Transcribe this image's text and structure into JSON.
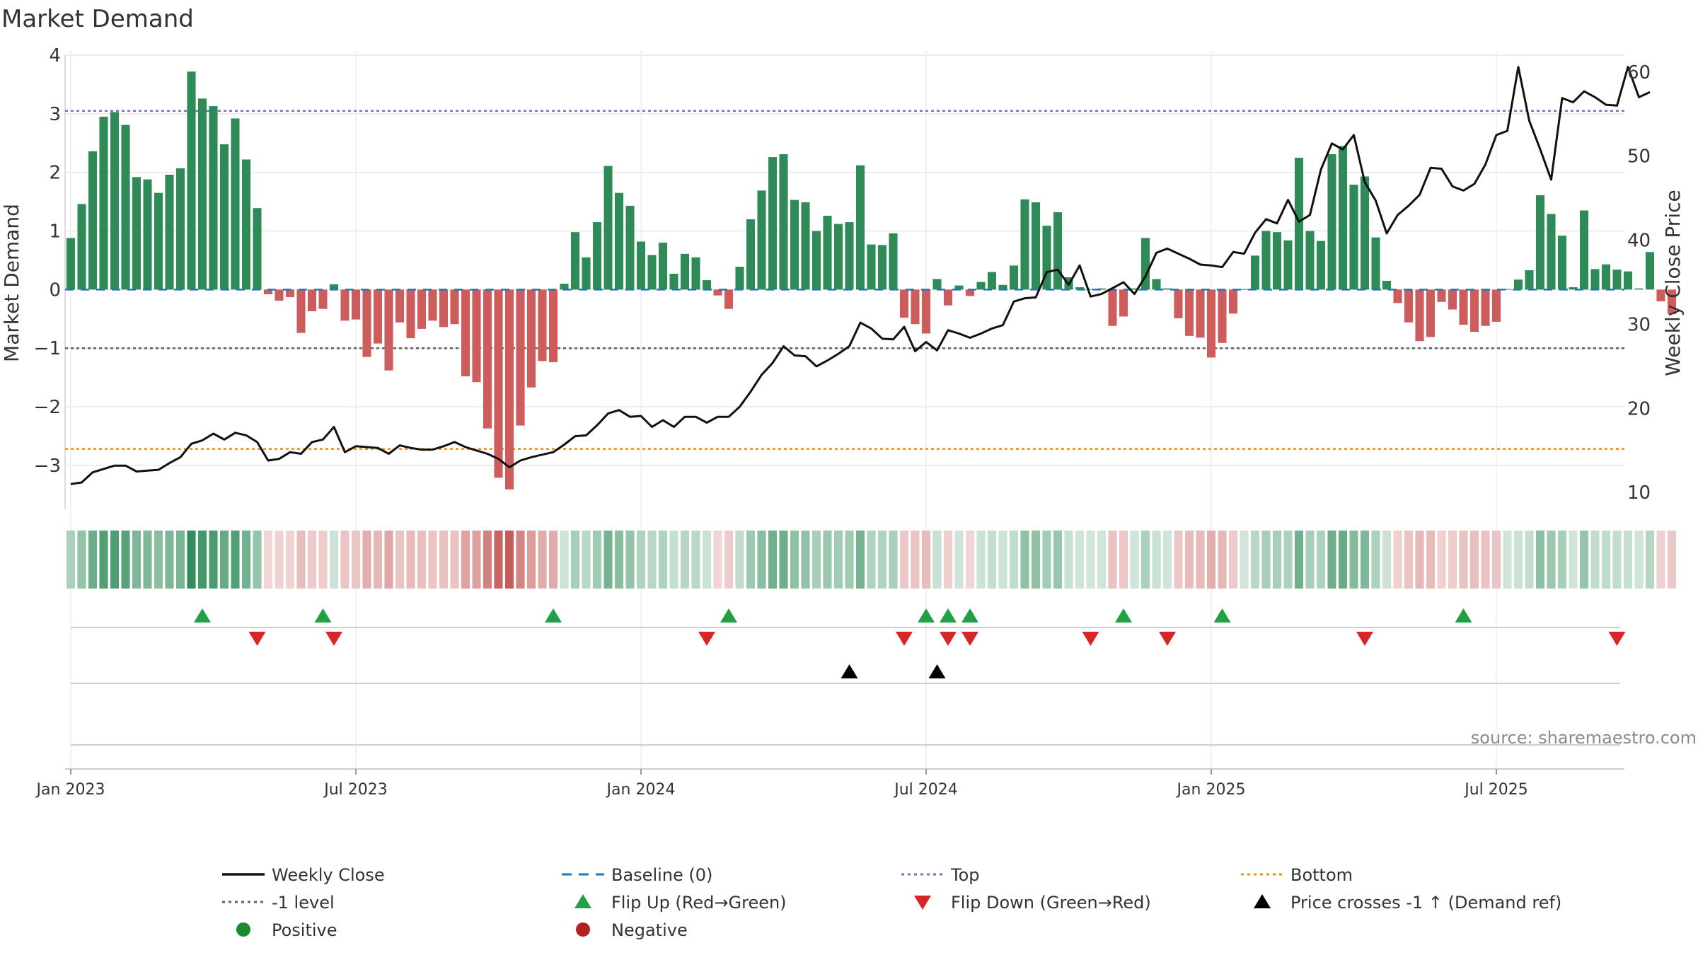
{
  "title": "Market Demand",
  "source": "source: sharemaestro.com",
  "chart_data": {
    "type": "bar",
    "x_tick_labels": [
      "Jan 2023",
      "Jul 2023",
      "Jan 2024",
      "Jul 2024",
      "Jan 2025",
      "Jul 2025"
    ],
    "x_tick_weeks": [
      0,
      26,
      52,
      78,
      104,
      130
    ],
    "left_axis": {
      "label": "Market Demand",
      "range": [
        -3.75,
        4.0
      ],
      "ticks": [
        4,
        3,
        2,
        1,
        0,
        -1,
        -2,
        -3
      ],
      "tick_labels": [
        "4",
        "3",
        "2",
        "1",
        "0",
        "−1",
        "−2",
        "−3"
      ]
    },
    "right_axis": {
      "label": "Weekly Close Price",
      "range": [
        8,
        62
      ],
      "ticks": [
        60,
        50,
        40,
        30,
        20,
        10
      ],
      "tick_labels": [
        "60",
        "50",
        "40",
        "30",
        "20",
        "10"
      ]
    },
    "reference_lines": {
      "top": 3.05,
      "minus_one": -1.0,
      "bottom": -2.72,
      "baseline": 0
    },
    "week_start": "2023-01-01",
    "week_step_days": 7,
    "demand": [
      0.88,
      1.46,
      2.36,
      2.95,
      3.03,
      2.81,
      1.92,
      1.88,
      1.65,
      1.96,
      2.07,
      3.72,
      3.26,
      3.13,
      2.48,
      2.92,
      2.22,
      1.39,
      -0.08,
      -0.19,
      -0.13,
      -0.74,
      -0.37,
      -0.33,
      0.09,
      -0.53,
      -0.51,
      -1.15,
      -0.92,
      -1.38,
      -0.56,
      -0.83,
      -0.67,
      -0.53,
      -0.64,
      -0.59,
      -1.48,
      -1.58,
      -2.37,
      -3.21,
      -3.41,
      -2.32,
      -1.67,
      -1.22,
      -1.24,
      0.1,
      0.98,
      0.55,
      1.15,
      2.11,
      1.65,
      1.43,
      0.82,
      0.59,
      0.8,
      0.27,
      0.61,
      0.55,
      0.16,
      -0.1,
      -0.33,
      0.39,
      1.2,
      1.69,
      2.26,
      2.31,
      1.53,
      1.49,
      1.0,
      1.26,
      1.12,
      1.15,
      2.12,
      0.77,
      0.76,
      0.96,
      -0.48,
      -0.59,
      -0.75,
      0.18,
      -0.27,
      0.07,
      -0.11,
      0.13,
      0.3,
      0.08,
      0.41,
      1.54,
      1.49,
      1.09,
      1.32,
      0.21,
      0.04,
      0.01,
      0.02,
      -0.62,
      -0.46,
      0.02,
      0.88,
      0.18,
      0.02,
      -0.49,
      -0.79,
      -0.82,
      -1.16,
      -0.91,
      -0.41,
      0.01,
      0.58,
      1.0,
      0.98,
      0.84,
      2.25,
      1.0,
      0.83,
      2.31,
      2.45,
      1.79,
      1.93,
      0.89,
      0.15,
      -0.23,
      -0.56,
      -0.88,
      -0.81,
      -0.21,
      -0.34,
      -0.6,
      -0.72,
      -0.62,
      -0.55,
      0.01,
      0.17,
      0.33,
      1.61,
      1.29,
      0.92,
      0.04,
      1.35,
      0.35,
      0.43,
      0.34,
      0.31,
      0.02,
      0.64,
      -0.2,
      -0.42
    ],
    "close": [
      11.0,
      11.2,
      12.4,
      12.8,
      13.2,
      13.2,
      12.5,
      12.6,
      12.7,
      13.5,
      14.2,
      15.8,
      16.2,
      17.0,
      16.3,
      17.1,
      16.8,
      16.0,
      13.8,
      14.0,
      14.8,
      14.6,
      16.0,
      16.3,
      17.8,
      14.8,
      15.5,
      15.4,
      15.3,
      14.6,
      15.6,
      15.3,
      15.1,
      15.1,
      15.5,
      16.0,
      15.4,
      15.0,
      14.6,
      14.0,
      13.0,
      13.8,
      14.2,
      14.5,
      14.8,
      15.7,
      16.7,
      16.8,
      18.0,
      19.4,
      19.8,
      19.0,
      19.1,
      17.8,
      18.6,
      17.8,
      19.0,
      19.0,
      18.3,
      19.0,
      19.0,
      20.2,
      22.0,
      24.0,
      25.4,
      27.4,
      26.3,
      26.2,
      25.0,
      25.7,
      26.5,
      27.4,
      30.2,
      29.5,
      28.3,
      28.2,
      29.7,
      26.8,
      27.9,
      26.9,
      29.3,
      28.9,
      28.4,
      28.9,
      29.5,
      29.9,
      32.7,
      33.1,
      33.2,
      36.2,
      36.5,
      34.7,
      37.0,
      33.3,
      33.6,
      34.3,
      35.0,
      33.6,
      35.7,
      38.5,
      39.0,
      38.4,
      37.8,
      37.1,
      37.0,
      36.8,
      38.6,
      38.4,
      40.9,
      42.5,
      42.0,
      44.8,
      42.2,
      43.0,
      48.4,
      51.5,
      50.8,
      52.5,
      46.9,
      44.7,
      40.8,
      43.0,
      44.1,
      45.4,
      48.6,
      48.5,
      46.4,
      45.9,
      46.7,
      49.0,
      52.5,
      53.0,
      60.6,
      54.2,
      50.8,
      47.2,
      56.9,
      56.4,
      57.7,
      57.0,
      56.1,
      56.0,
      60.6,
      57.0,
      57.6
    ],
    "bottom_strip": {
      "type": "heatmap",
      "value_source": "demand",
      "color_positive": "#2e8b57",
      "color_negative": "#c0504d"
    },
    "flip_up_weeks": [
      12,
      23,
      44,
      60,
      78,
      80,
      82,
      96,
      105,
      127
    ],
    "flip_down_weeks": [
      17,
      24,
      58,
      76,
      80,
      82,
      93,
      100,
      118,
      141
    ],
    "price_cross_weeks": [
      71,
      79
    ],
    "legend": [
      {
        "label": "Weekly Close",
        "marker": "line-solid",
        "color": "#111111"
      },
      {
        "label": "Baseline (0)",
        "marker": "line-dash",
        "color": "#1f77b4"
      },
      {
        "label": "Top",
        "marker": "line-dot",
        "color": "#7b6fc0"
      },
      {
        "label": "Bottom",
        "marker": "line-dot",
        "color": "#e69500"
      },
      {
        "label": "-1 level",
        "marker": "line-dot",
        "color": "#606060"
      },
      {
        "label": "Flip Up (Red→Green)",
        "marker": "triangle-up",
        "color": "#22a046"
      },
      {
        "label": "Flip Down (Green→Red)",
        "marker": "triangle-down",
        "color": "#d62728"
      },
      {
        "label": "Price crosses -1 ↑ (Demand ref)",
        "marker": "triangle-up",
        "color": "#000000"
      },
      {
        "label": "Positive",
        "marker": "circle",
        "color": "#1e8a2e"
      },
      {
        "label": "Negative",
        "marker": "circle",
        "color": "#b22222"
      }
    ]
  },
  "colors": {
    "bar_positive": "#2e8b57",
    "bar_negative": "#cd5c5c",
    "price_line": "#111111",
    "grid": "#e8e8e8",
    "axis_text": "#333333",
    "source_text": "#8a8a8a"
  }
}
